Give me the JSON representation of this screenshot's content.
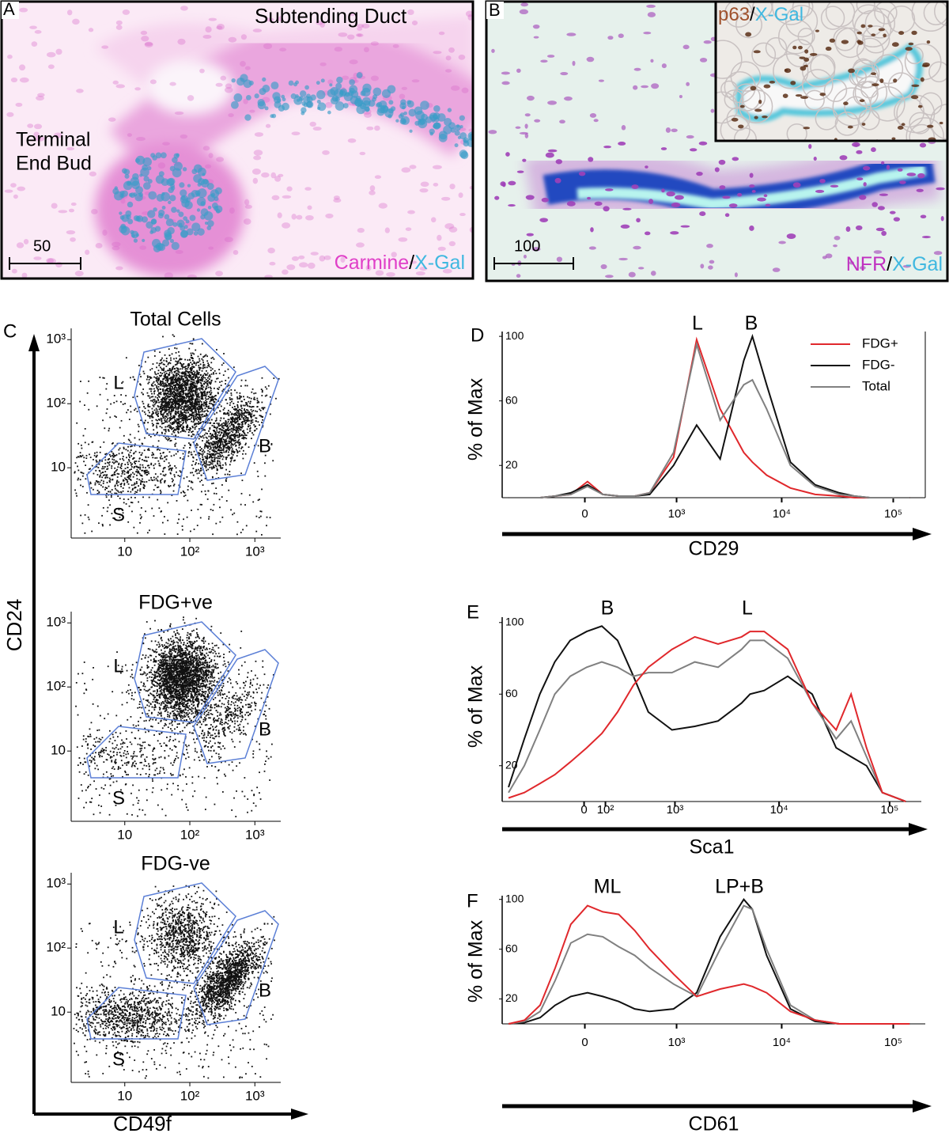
{
  "panels": [
    {
      "label": "A",
      "title": "Subtending Duct",
      "annotation": [
        "Terminal",
        "End Bud"
      ],
      "scale_bar": "50",
      "stain": [
        {
          "text": "Carmine",
          "color": "#e040c8"
        },
        {
          "text": "/",
          "color": "#000000"
        },
        {
          "text": "X-Gal",
          "color": "#40b8e0"
        }
      ]
    },
    {
      "label": "B",
      "scale_bar": "100",
      "inset_stain": [
        {
          "text": "p63",
          "color": "#a0522d"
        },
        {
          "text": "/",
          "color": "#000000"
        },
        {
          "text": "X-Gal",
          "color": "#40b8e0"
        }
      ],
      "stain": [
        {
          "text": "NFR",
          "color": "#c030c0"
        },
        {
          "text": "/",
          "color": "#000000"
        },
        {
          "text": "X-Gal",
          "color": "#40b8e0"
        }
      ]
    }
  ],
  "panel_c": {
    "label": "C",
    "y_label": "CD24",
    "x_label": "CD49f",
    "log": true,
    "xlim": [
      1.5,
      2500
    ],
    "ylim": [
      0.8,
      1500
    ],
    "xticks": [
      10,
      {
        "value": 100,
        "label": "10²"
      },
      {
        "value": 1000,
        "label": "10³"
      }
    ],
    "yticks": [
      10,
      {
        "value": 100,
        "label": "10²"
      },
      {
        "value": 1000,
        "label": "10³"
      }
    ],
    "gate_color": "#5b7fd6",
    "plots": [
      {
        "title": "Total Cells",
        "gates": [
          "L",
          "B",
          "S"
        ]
      },
      {
        "title": "FDG+ve",
        "gates": [
          "L",
          "B",
          "S"
        ]
      },
      {
        "title": "FDG-ve",
        "gates": [
          "L",
          "B",
          "S"
        ]
      }
    ]
  },
  "chart_data": [
    {
      "type": "line",
      "label": "D",
      "y_label": "% of Max",
      "x_label": "CD29",
      "annotations": [
        "L",
        "B"
      ],
      "legend": "upper right",
      "xlim": [
        -800,
        193000
      ],
      "ylim": [
        0,
        103
      ],
      "xticks": [
        0,
        {
          "value": 1000,
          "label": "10³"
        },
        {
          "value": 10000,
          "label": "10⁴"
        },
        {
          "value": 100000,
          "label": "10⁵"
        }
      ],
      "yticks": [
        20,
        60,
        100
      ],
      "x": [
        -680,
        -440,
        -270,
        -150,
        -60,
        10,
        80,
        180,
        320,
        500,
        930,
        1600,
        2700,
        4500,
        5400,
        7300,
        12000,
        20000,
        33000,
        45000,
        62000,
        86000,
        140000
      ],
      "series": [
        {
          "name": "FDG+",
          "color": "#e0282c",
          "values": [
            0,
            0,
            0,
            1,
            2,
            10,
            2,
            1,
            1,
            3,
            25,
            98,
            55,
            28,
            22,
            14,
            6,
            2,
            1,
            0,
            0,
            0,
            0
          ]
        },
        {
          "name": "FDG-",
          "color": "#111111",
          "values": [
            0,
            0,
            0,
            1,
            3,
            8,
            2,
            1,
            1,
            2,
            20,
            45,
            24,
            85,
            100,
            70,
            22,
            8,
            3,
            1,
            0,
            0,
            0
          ]
        },
        {
          "name": "Total",
          "color": "#808080",
          "values": [
            0,
            0,
            0,
            1,
            2,
            7,
            2,
            1,
            1,
            3,
            28,
            95,
            48,
            70,
            73,
            55,
            20,
            7,
            2,
            1,
            0,
            0,
            0
          ]
        }
      ]
    },
    {
      "type": "line",
      "label": "E",
      "y_label": "% of Max",
      "x_label": "Sca1",
      "annotations": [
        "B",
        "L"
      ],
      "xlim": [
        -800,
        193000
      ],
      "ylim": [
        0,
        103
      ],
      "xticks": [
        0,
        {
          "value": 100,
          "label": "10²"
        },
        {
          "value": 1000,
          "label": "10³"
        },
        {
          "value": 10000,
          "label": "10⁴"
        },
        {
          "value": 100000,
          "label": "10⁵"
        }
      ],
      "yticks": [
        20,
        60,
        100
      ],
      "x": [
        -680,
        -440,
        -270,
        -150,
        -60,
        10,
        80,
        180,
        320,
        500,
        930,
        1600,
        2700,
        4500,
        5400,
        7300,
        12000,
        20000,
        33000,
        45000,
        62000,
        86000,
        140000
      ],
      "series": [
        {
          "color": "#111111",
          "values": [
            8,
            35,
            60,
            78,
            90,
            95,
            98,
            90,
            70,
            50,
            40,
            42,
            45,
            55,
            60,
            62,
            70,
            60,
            30,
            25,
            20,
            5,
            0
          ]
        },
        {
          "color": "#808080",
          "values": [
            5,
            20,
            40,
            60,
            70,
            75,
            78,
            75,
            70,
            72,
            72,
            78,
            75,
            85,
            90,
            90,
            80,
            55,
            35,
            45,
            25,
            5,
            0
          ]
        },
        {
          "color": "#e0282c",
          "values": [
            2,
            5,
            10,
            15,
            22,
            30,
            38,
            50,
            65,
            75,
            85,
            92,
            88,
            92,
            95,
            95,
            85,
            55,
            40,
            60,
            30,
            5,
            0
          ]
        }
      ]
    },
    {
      "type": "line",
      "label": "F",
      "y_label": "% of Max",
      "x_label": "CD61",
      "annotations": [
        "ML",
        "LP+B"
      ],
      "xlim": [
        -800,
        193000
      ],
      "ylim": [
        0,
        103
      ],
      "xticks": [
        0,
        {
          "value": 1000,
          "label": "10³"
        },
        {
          "value": 10000,
          "label": "10⁴"
        },
        {
          "value": 100000,
          "label": "10⁵"
        }
      ],
      "yticks": [
        20,
        60,
        100
      ],
      "x": [
        -680,
        -440,
        -270,
        -150,
        -60,
        10,
        80,
        180,
        320,
        500,
        930,
        1600,
        2700,
        4500,
        5400,
        7300,
        12000,
        20000,
        33000,
        45000,
        62000,
        86000,
        140000
      ],
      "series": [
        {
          "color": "#111111",
          "values": [
            0,
            1,
            5,
            15,
            22,
            25,
            22,
            18,
            12,
            10,
            12,
            25,
            70,
            100,
            92,
            55,
            12,
            2,
            0,
            0,
            0,
            0,
            0
          ]
        },
        {
          "color": "#808080",
          "values": [
            0,
            2,
            10,
            35,
            65,
            72,
            70,
            62,
            55,
            45,
            32,
            22,
            60,
            95,
            92,
            60,
            15,
            3,
            0,
            0,
            0,
            0,
            0
          ]
        },
        {
          "color": "#e0282c",
          "values": [
            0,
            3,
            15,
            45,
            80,
            95,
            90,
            88,
            75,
            60,
            40,
            22,
            28,
            32,
            30,
            25,
            10,
            3,
            0,
            0,
            0,
            0,
            0
          ]
        }
      ]
    }
  ]
}
